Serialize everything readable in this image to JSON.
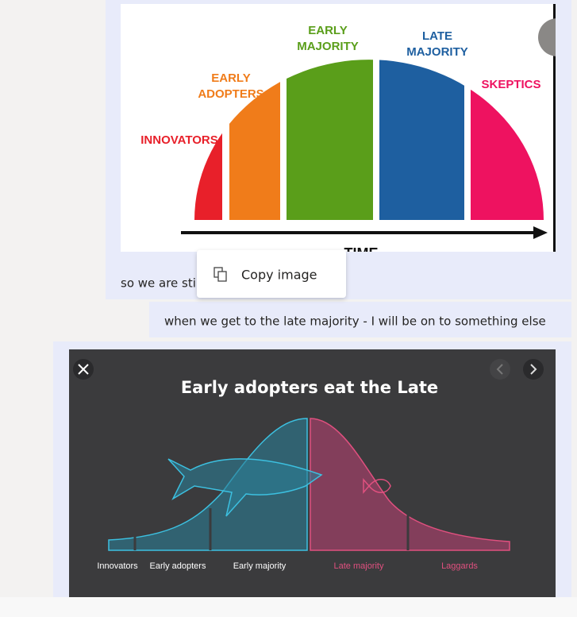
{
  "messages": [
    {
      "image": {
        "labels": [
          [
            "INNOVATORS"
          ],
          [
            "EARLY",
            "ADOPTERS"
          ],
          [
            "EARLY",
            "MAJORITY"
          ],
          [
            "LATE",
            "MAJORITY"
          ],
          [
            "SKEPTICS"
          ]
        ],
        "axis_label": "TIME"
      },
      "text": "so we are sti"
    },
    {
      "text": "when we get to the late majority - I will be on to something else"
    },
    {
      "image": {
        "title": "Early adopters eat the Late",
        "labels": [
          "Innovators",
          "Early adopters",
          "Early majority",
          "Late majority",
          "Laggards"
        ]
      }
    }
  ],
  "context_menu": {
    "items": [
      "Copy image"
    ]
  }
}
